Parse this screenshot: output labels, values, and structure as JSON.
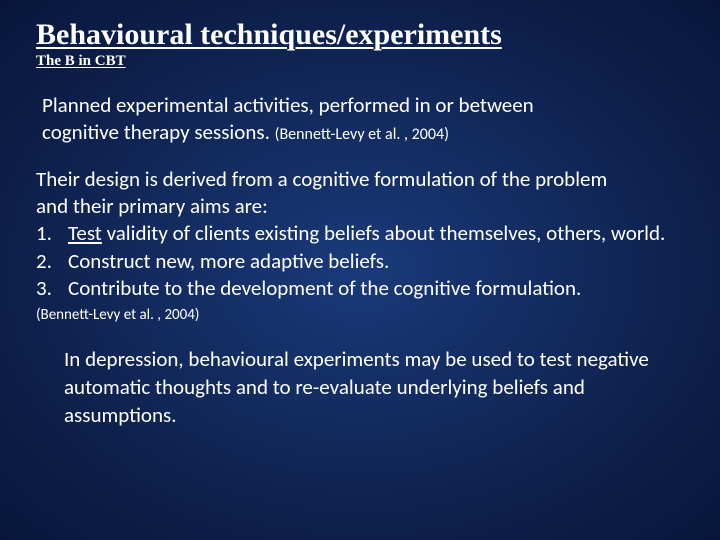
{
  "colors": {
    "bg_center": "#1a3a7a",
    "bg_edge": "#08163a",
    "text": "#ffffff"
  },
  "title": "Behavioural techniques/experiments",
  "subtitle": "The B in CBT",
  "intro_line1": "Planned experimental activities, performed in or between",
  "intro_line2_pre": "cognitive therapy sessions. ",
  "intro_cite": "(Bennett-Levy et al. , 2004)",
  "body_lead1": "Their design is derived from a cognitive formulation of the problem",
  "body_lead2": "and their primary aims are:",
  "list": {
    "item1_num": "1.",
    "item1_lead": "Test",
    "item1_rest": " validity of clients existing beliefs about themselves, others, world.",
    "item2_num": "2.",
    "item2_text": " Construct new, more adaptive beliefs.",
    "item3_num": "3.",
    "item3_text": "Contribute to the development of the cognitive formulation."
  },
  "cite_block": "(Bennett-Levy et al. , 2004)",
  "closing": "In depression, behavioural experiments may be used to test negative  automatic thoughts and to re-evaluate underlying beliefs and assumptions.",
  "typography": {
    "title_fontsize": 30,
    "subtitle_fontsize": 15,
    "body_fontsize": 21,
    "cite_fontsize": 15,
    "title_family": "Times New Roman",
    "body_family": "Calibri"
  }
}
